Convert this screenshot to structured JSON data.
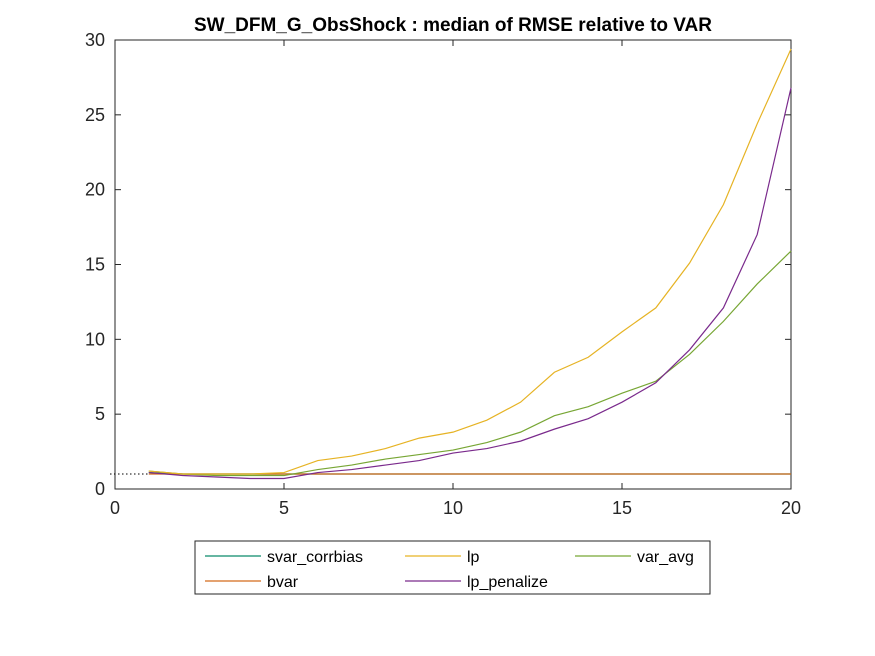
{
  "chart_data": {
    "type": "line",
    "title": "SW_DFM_G_ObsShock : median of RMSE relative to VAR",
    "xlabel": "",
    "ylabel": "",
    "xlim": [
      0,
      20
    ],
    "ylim": [
      0,
      30
    ],
    "xticks": [
      0,
      5,
      10,
      15,
      20
    ],
    "yticks": [
      0,
      5,
      10,
      15,
      20,
      25,
      30
    ],
    "grid": false,
    "legend_position": "bottom-outside",
    "reference_line": {
      "y": 1,
      "style": "dotted",
      "color": "#000000"
    },
    "x": [
      1,
      2,
      3,
      4,
      5,
      6,
      7,
      8,
      9,
      10,
      11,
      12,
      13,
      14,
      15,
      16,
      17,
      18,
      19,
      20
    ],
    "series": [
      {
        "name": "svar_corrbias",
        "color": "#0b8a6a",
        "values": [
          1.1,
          1.0,
          1.0,
          1.0,
          1.0,
          1.0,
          1.0,
          1.0,
          1.0,
          1.0,
          1.0,
          1.0,
          1.0,
          1.0,
          1.0,
          1.0,
          1.0,
          1.0,
          1.0,
          1.0
        ]
      },
      {
        "name": "lp",
        "color": "#e6b324",
        "values": [
          1.2,
          1.0,
          1.0,
          1.0,
          1.1,
          1.9,
          2.2,
          2.7,
          3.4,
          3.8,
          4.6,
          5.8,
          7.8,
          8.8,
          10.5,
          12.1,
          15.1,
          19.0,
          24.4,
          29.4
        ]
      },
      {
        "name": "var_avg",
        "color": "#77a634",
        "values": [
          1.2,
          1.0,
          0.9,
          0.9,
          0.9,
          1.3,
          1.6,
          2.0,
          2.3,
          2.6,
          3.1,
          3.8,
          4.9,
          5.5,
          6.4,
          7.2,
          9.0,
          11.2,
          13.7,
          15.9
        ]
      },
      {
        "name": "bvar",
        "color": "#d36a1b",
        "values": [
          1.0,
          1.0,
          1.0,
          1.0,
          1.0,
          1.0,
          1.0,
          1.0,
          1.0,
          1.0,
          1.0,
          1.0,
          1.0,
          1.0,
          1.0,
          1.0,
          1.0,
          1.0,
          1.0,
          1.0
        ]
      },
      {
        "name": "lp_penalize",
        "color": "#7a2a8c",
        "values": [
          1.1,
          0.9,
          0.8,
          0.7,
          0.7,
          1.1,
          1.3,
          1.6,
          1.9,
          2.4,
          2.7,
          3.2,
          4.0,
          4.7,
          5.8,
          7.1,
          9.3,
          12.1,
          17.0,
          26.8
        ]
      }
    ],
    "legend_order": [
      "svar_corrbias",
      "lp",
      "var_avg",
      "bvar",
      "lp_penalize"
    ]
  }
}
